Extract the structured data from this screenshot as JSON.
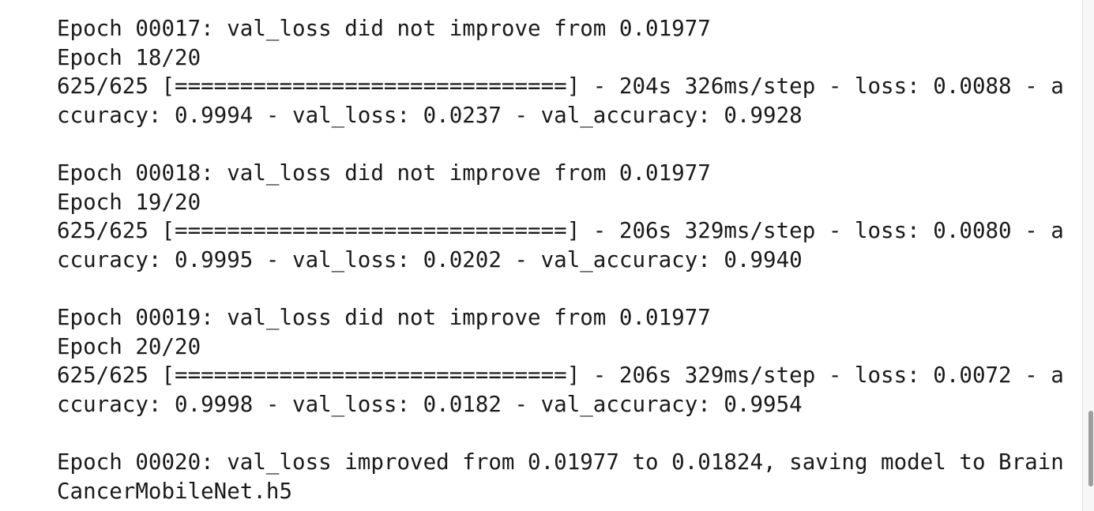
{
  "output_lines": [
    "Epoch 00017: val_loss did not improve from 0.01977",
    "Epoch 18/20",
    "625/625 [==============================] - 204s 326ms/step - loss: 0.0088 - a",
    "ccuracy: 0.9994 - val_loss: 0.0237 - val_accuracy: 0.9928",
    "",
    "Epoch 00018: val_loss did not improve from 0.01977",
    "Epoch 19/20",
    "625/625 [==============================] - 206s 329ms/step - loss: 0.0080 - a",
    "ccuracy: 0.9995 - val_loss: 0.0202 - val_accuracy: 0.9940",
    "",
    "Epoch 00019: val_loss did not improve from 0.01977",
    "Epoch 20/20",
    "625/625 [==============================] - 206s 329ms/step - loss: 0.0072 - a",
    "ccuracy: 0.9998 - val_loss: 0.0182 - val_accuracy: 0.9954",
    "",
    "Epoch 00020: val_loss improved from 0.01977 to 0.01824, saving model to Brain",
    "CancerMobileNet.h5"
  ]
}
